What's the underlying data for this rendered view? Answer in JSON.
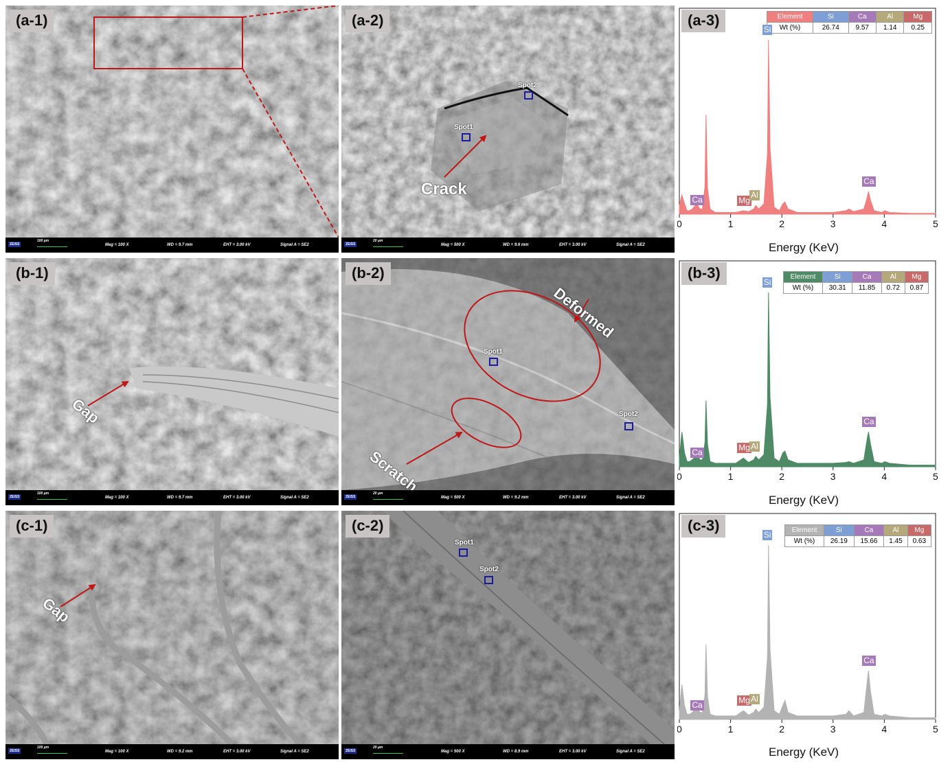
{
  "panels": {
    "a1": {
      "label": "(a-1)",
      "mag": "Mag =  100 X",
      "wd": "WD =  9.7 mm",
      "eht": "EHT =  3.00 kV",
      "signal": "Signal A = SE2",
      "scale": "100 µm",
      "logo": "ZEISS"
    },
    "a2": {
      "label": "(a-2)",
      "mag": "Mag =  500 X",
      "wd": "WD =  9.6 mm",
      "eht": "EHT =  3.00 kV",
      "signal": "Signal A = SE2",
      "scale": "20 µm",
      "logo": "ZEISS",
      "spot1": "Spot1",
      "spot2": "Spot2",
      "crack": "Crack"
    },
    "b1": {
      "label": "(b-1)",
      "mag": "Mag =  100 X",
      "wd": "WD =  9.7 mm",
      "eht": "EHT =  3.00 kV",
      "signal": "Signal A = SE2",
      "scale": "100 µm",
      "logo": "ZEISS",
      "gap": "Gap"
    },
    "b2": {
      "label": "(b-2)",
      "mag": "Mag =  500 X",
      "wd": "WD =  9.2 mm",
      "eht": "EHT =  3.00 kV",
      "signal": "Signal A = SE2",
      "scale": "20 µm",
      "logo": "ZEISS",
      "spot1": "Spot1",
      "spot2": "Spot2",
      "deformed": "Deformed",
      "scratch": "Scratch"
    },
    "c1": {
      "label": "(c-1)",
      "mag": "Mag =  100 X",
      "wd": "WD =  9.2 mm",
      "eht": "EHT =  3.00 kV",
      "signal": "Signal A = SE2",
      "scale": "100 µm",
      "logo": "ZEISS",
      "gap": "Gap"
    },
    "c2": {
      "label": "(c-2)",
      "mag": "Mag =  500 X",
      "wd": "WD =  8.9 mm",
      "eht": "EHT =  3.00 kV",
      "signal": "Signal A = SE2",
      "scale": "20 µm",
      "logo": "ZEISS",
      "spot1": "Spot1",
      "spot2": "Spot2"
    }
  },
  "chart_data": [
    {
      "type": "area",
      "label": "(a-3)",
      "xlabel": "Energy (KeV)",
      "xlim": [
        0,
        5
      ],
      "color": "#f08080",
      "xticks": [
        "0",
        "1",
        "2",
        "3",
        "4",
        "5"
      ],
      "table": {
        "header": [
          "Element",
          "Si",
          "Ca",
          "Al",
          "Mg"
        ],
        "row": [
          "Wt (%)",
          "26.74",
          "9.57",
          "1.14",
          "0.25"
        ]
      },
      "peaks": [
        {
          "name": "Ca",
          "x": 0.34
        },
        {
          "name": "Mg",
          "x": 1.25
        },
        {
          "name": "Al",
          "x": 1.49
        },
        {
          "name": "Si",
          "x": 1.74
        },
        {
          "name": "Ca",
          "x": 3.69
        }
      ],
      "x": [
        0,
        0.05,
        0.1,
        0.15,
        0.2,
        0.25,
        0.28,
        0.34,
        0.4,
        0.45,
        0.5,
        0.52,
        0.55,
        0.6,
        0.7,
        0.9,
        1.1,
        1.25,
        1.35,
        1.45,
        1.49,
        1.55,
        1.65,
        1.72,
        1.74,
        1.77,
        1.85,
        1.95,
        2.02,
        2.06,
        2.12,
        2.3,
        2.6,
        3.0,
        3.25,
        3.31,
        3.4,
        3.6,
        3.66,
        3.69,
        3.73,
        3.8,
        3.95,
        4.01,
        4.1,
        4.5,
        5.0
      ],
      "y": [
        0.05,
        0.11,
        0.06,
        0.02,
        0.02,
        0.03,
        0.04,
        0.06,
        0.03,
        0.03,
        0.16,
        0.57,
        0.15,
        0.03,
        0.01,
        0.01,
        0.01,
        0.02,
        0.015,
        0.03,
        0.05,
        0.03,
        0.06,
        0.35,
        1.0,
        0.38,
        0.04,
        0.02,
        0.06,
        0.07,
        0.03,
        0.01,
        0.01,
        0.01,
        0.02,
        0.03,
        0.015,
        0.03,
        0.09,
        0.13,
        0.08,
        0.02,
        0.01,
        0.02,
        0.01,
        0.005,
        0.005
      ]
    },
    {
      "type": "area",
      "label": "(b-3)",
      "xlabel": "Energy (KeV)",
      "xlim": [
        0,
        5
      ],
      "color": "#4e8a66",
      "xticks": [
        "0",
        "1",
        "2",
        "3",
        "4",
        "5"
      ],
      "table": {
        "header": [
          "Element",
          "Si",
          "Ca",
          "Al",
          "Mg"
        ],
        "row": [
          "Wt (%)",
          "30.31",
          "11.85",
          "0.72",
          "0.87"
        ]
      },
      "peaks": [
        {
          "name": "Si",
          "x": 1.74
        },
        {
          "name": "Ca",
          "x": 0.34
        },
        {
          "name": "Mg",
          "x": 1.25
        },
        {
          "name": "Al",
          "x": 1.49
        },
        {
          "name": "Ca",
          "x": 3.69
        }
      ],
      "x": [
        0,
        0.05,
        0.1,
        0.15,
        0.2,
        0.25,
        0.28,
        0.34,
        0.4,
        0.45,
        0.5,
        0.52,
        0.55,
        0.6,
        0.7,
        0.9,
        1.1,
        1.25,
        1.35,
        1.45,
        1.49,
        1.55,
        1.65,
        1.72,
        1.74,
        1.77,
        1.85,
        1.95,
        2.02,
        2.06,
        2.12,
        2.3,
        2.6,
        3.0,
        3.25,
        3.31,
        3.4,
        3.6,
        3.66,
        3.69,
        3.73,
        3.8,
        3.95,
        4.01,
        4.1,
        4.5,
        5.0
      ],
      "y": [
        0.05,
        0.2,
        0.08,
        0.03,
        0.03,
        0.04,
        0.05,
        0.08,
        0.04,
        0.04,
        0.14,
        0.38,
        0.13,
        0.03,
        0.02,
        0.02,
        0.02,
        0.05,
        0.025,
        0.04,
        0.06,
        0.04,
        0.07,
        0.36,
        1.0,
        0.4,
        0.05,
        0.03,
        0.08,
        0.09,
        0.04,
        0.02,
        0.02,
        0.02,
        0.025,
        0.03,
        0.02,
        0.04,
        0.15,
        0.2,
        0.13,
        0.03,
        0.02,
        0.03,
        0.02,
        0.01,
        0.01
      ]
    },
    {
      "type": "area",
      "label": "(c-3)",
      "xlabel": "Energy (KeV)",
      "xlim": [
        0,
        5
      ],
      "color": "#b3b3b3",
      "xticks": [
        "0",
        "1",
        "2",
        "3",
        "4",
        "5"
      ],
      "table": {
        "header": [
          "Element",
          "Si",
          "Ca",
          "Al",
          "Mg"
        ],
        "row": [
          "Wt (%)",
          "26.19",
          "15.66",
          "1.45",
          "0.63"
        ]
      },
      "peaks": [
        {
          "name": "Si",
          "x": 1.74
        },
        {
          "name": "Ca",
          "x": 0.34
        },
        {
          "name": "Mg",
          "x": 1.25
        },
        {
          "name": "Al",
          "x": 1.49
        },
        {
          "name": "Ca",
          "x": 3.69
        }
      ],
      "x": [
        0,
        0.05,
        0.1,
        0.15,
        0.2,
        0.25,
        0.28,
        0.34,
        0.4,
        0.45,
        0.5,
        0.52,
        0.55,
        0.6,
        0.7,
        0.9,
        1.1,
        1.25,
        1.35,
        1.45,
        1.49,
        1.55,
        1.65,
        1.72,
        1.74,
        1.77,
        1.85,
        1.95,
        2.02,
        2.06,
        2.12,
        2.3,
        2.6,
        3.0,
        3.25,
        3.31,
        3.4,
        3.6,
        3.66,
        3.69,
        3.73,
        3.8,
        3.95,
        4.01,
        4.1,
        4.5,
        5.0
      ],
      "y": [
        0.05,
        0.2,
        0.08,
        0.03,
        0.03,
        0.04,
        0.05,
        0.08,
        0.04,
        0.04,
        0.14,
        0.43,
        0.13,
        0.03,
        0.02,
        0.02,
        0.02,
        0.05,
        0.025,
        0.04,
        0.06,
        0.04,
        0.07,
        0.36,
        1.0,
        0.4,
        0.05,
        0.03,
        0.08,
        0.11,
        0.04,
        0.02,
        0.02,
        0.02,
        0.03,
        0.05,
        0.02,
        0.04,
        0.2,
        0.28,
        0.16,
        0.03,
        0.02,
        0.03,
        0.02,
        0.01,
        0.01
      ]
    }
  ],
  "colors": {
    "annotation_red": "#c01616",
    "spot_blue": "#1a1aa0",
    "th_element": "#f08080",
    "th_si": "#7e9fd6",
    "th_ca": "#a67ab8",
    "th_al": "#b5a87a",
    "th_mg": "#c96a6a"
  }
}
